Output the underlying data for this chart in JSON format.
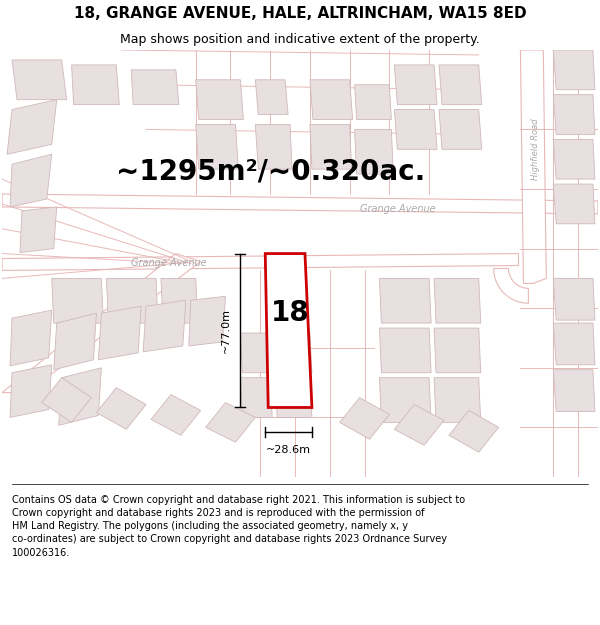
{
  "title": "18, GRANGE AVENUE, HALE, ALTRINCHAM, WA15 8ED",
  "subtitle": "Map shows position and indicative extent of the property.",
  "footer": "Contains OS data © Crown copyright and database right 2021. This information is subject to Crown copyright and database rights 2023 and is reproduced with the permission of HM Land Registry. The polygons (including the associated geometry, namely x, y co-ordinates) are subject to Crown copyright and database rights 2023 Ordnance Survey 100026316.",
  "area_label": "~1295m²/~0.320ac.",
  "height_label": "~77.0m",
  "width_label": "~28.6m",
  "number_label": "18",
  "road_label_upper": "Grange Avenue",
  "road_label_lower": "Grange Avenue",
  "road_label_right": "Highfield Road",
  "bg_color": "#ffffff",
  "map_bg": "#ffffff",
  "road_color": "#e8b8b8",
  "building_fill": "#e8e0e0",
  "building_edge": "#d0b8b8",
  "highlight_fill": "#ffffff",
  "highlight_edge": "#cc0000",
  "dim_color": "#000000",
  "road_text_color": "#aaaaaa",
  "title_fontsize": 11,
  "subtitle_fontsize": 9,
  "area_fontsize": 20,
  "number_fontsize": 20,
  "road_fontsize": 7,
  "dim_fontsize": 8,
  "footer_fontsize": 7,
  "figsize": [
    6.0,
    6.25
  ],
  "dpi": 100
}
